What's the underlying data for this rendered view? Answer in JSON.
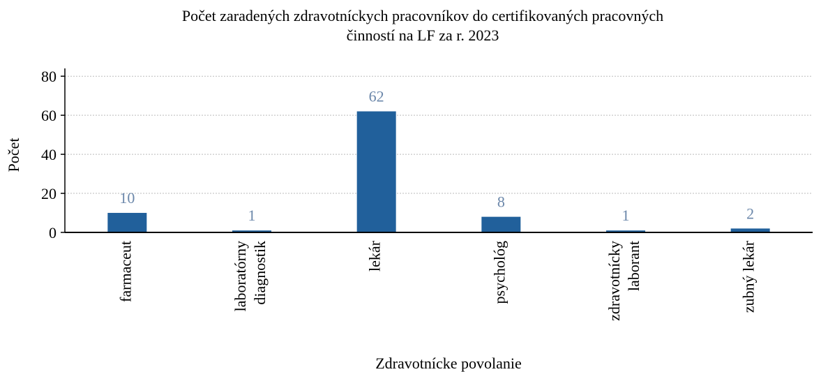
{
  "chart_data": {
    "type": "bar",
    "title": "Počet zaradených zdravotníckych pracovníkov do certifikovaných pracovných\nčinností na LF za r. 2023",
    "xlabel": "Zdravotnícke povolanie",
    "ylabel": "Počet",
    "categories": [
      "farmaceut",
      "laboratórny\ndiagnostik",
      "lekár",
      "psychológ",
      "zdravotnícky\nlaborant",
      "zubný lekár"
    ],
    "values": [
      10,
      1,
      62,
      8,
      1,
      2
    ],
    "color": "#21609b",
    "label_color": "#6b87aa",
    "ylim": [
      0,
      84
    ],
    "yticks": [
      0,
      20,
      40,
      60,
      80
    ],
    "grid": true
  }
}
